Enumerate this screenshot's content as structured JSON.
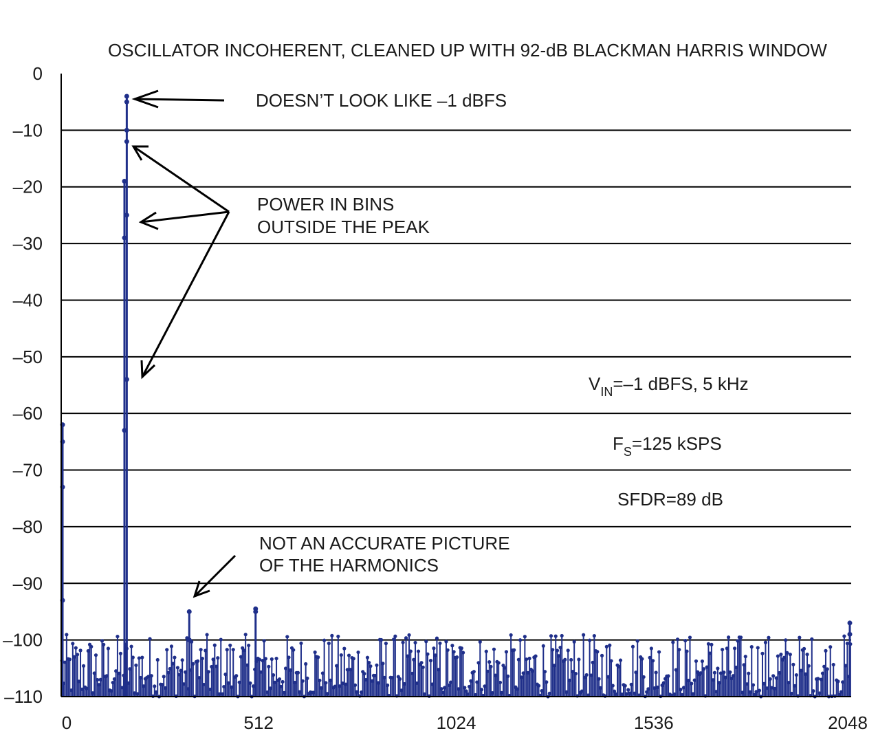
{
  "chart_data": {
    "type": "line",
    "title": "OSCILLATOR INCOHERENT, CLEANED UP WITH 92-dB BLACKMAN HARRIS WINDOW",
    "xlabel": "",
    "ylabel": "",
    "xlim": [
      0,
      2048
    ],
    "ylim": [
      -110,
      0
    ],
    "x_ticks": [
      "0",
      "512",
      "1024",
      "1536",
      "2048"
    ],
    "y_ticks": [
      "0",
      "–10",
      "–20",
      "–30",
      "–40",
      "–50",
      "–60",
      "–70",
      "–80",
      "–90",
      "–100",
      "–110"
    ],
    "grid": true,
    "series_color": "#1f2f8a",
    "noise_floor": [
      -110,
      -99
    ],
    "peaks": [
      {
        "x": 0,
        "values": [
          -62,
          -65,
          -73,
          -93
        ]
      },
      {
        "x": 164,
        "values": [
          -63,
          -29,
          -19
        ]
      },
      {
        "x": 170,
        "values": [
          -54,
          -25,
          -12,
          -10,
          -5,
          -4
        ]
      },
      {
        "x": 332,
        "values": [
          -95,
          -100
        ]
      },
      {
        "x": 504,
        "values": [
          -94.5,
          -95
        ]
      },
      {
        "x": 2048,
        "values": [
          -97,
          -99
        ]
      }
    ]
  },
  "annotations": {
    "peak_note": "DOESN’T LOOK LIKE –1 dBFS",
    "bins_line1": "POWER IN BINS",
    "bins_line2": "OUTSIDE THE PEAK",
    "harm_line1": "NOT AN ACCURATE PICTURE",
    "harm_line2": "OF THE HARMONICS",
    "vin_main": "V",
    "vin_sub": "IN",
    "vin_rest": "=–1 dBFS, 5 kHz",
    "fs_main": "F",
    "fs_sub": "S",
    "fs_rest": "=125 kSPS",
    "sfdr": "SFDR=89 dB"
  }
}
